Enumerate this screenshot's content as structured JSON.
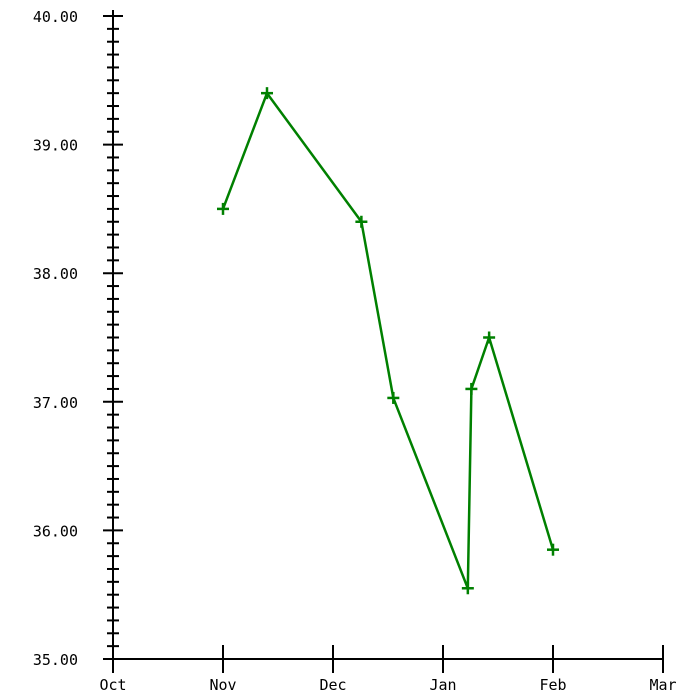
{
  "chart_data": {
    "type": "line",
    "title": "",
    "xlabel": "",
    "ylabel": "",
    "x_tick_labels": [
      "Oct",
      "Nov",
      "Dec",
      "Jan",
      "Feb",
      "Mar"
    ],
    "y_tick_labels": [
      "35.00",
      "36.00",
      "37.00",
      "38.00",
      "39.00",
      "40.00"
    ],
    "ylim": [
      35,
      40
    ],
    "xlim": [
      "Oct 1",
      "Mar 1"
    ],
    "grid": false,
    "legend": "none",
    "marker": "plus",
    "colors": {
      "series": "#008000",
      "axis": "#000000"
    },
    "series": [
      {
        "x": [
          "Nov 1",
          "Nov 13",
          "Dec 9",
          "Dec 18",
          "Jan 8",
          "Jan 9",
          "Jan 14",
          "Feb 1"
        ],
        "y": [
          38.5,
          39.4,
          38.4,
          37.03,
          35.55,
          37.1,
          37.5,
          35.85
        ]
      }
    ]
  }
}
